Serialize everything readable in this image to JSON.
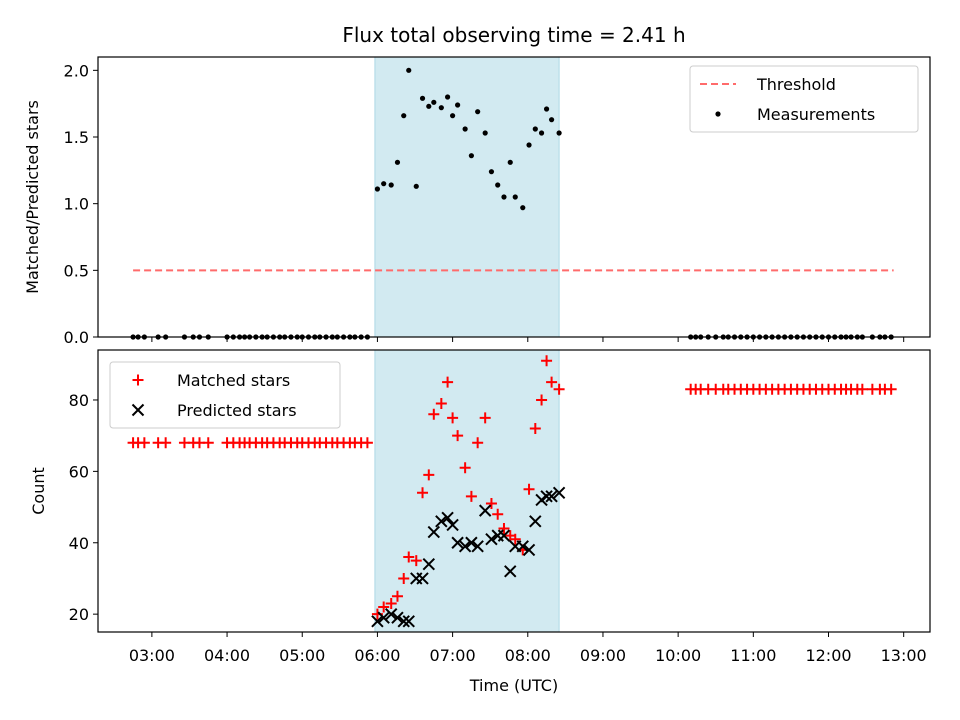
{
  "chart_data": [
    {
      "type": "scatter",
      "title": "Flux total observing time = 2.41 h",
      "xlabel": "",
      "ylabel": "Matched/Predicted stars",
      "xlim": [
        "02:17",
        "13:21"
      ],
      "ylim": [
        0,
        2.1
      ],
      "yticks": [
        "0.0",
        "0.5",
        "1.0",
        "1.5",
        "2.0"
      ],
      "legend_position": "upper right",
      "shaded_region": {
        "start": "05:58",
        "end": "08:25",
        "color": "#add8e6"
      },
      "series": [
        {
          "name": "Threshold",
          "style": "dashed-line",
          "color": "#ff6b6b",
          "points": [
            [
              "02:45",
              0.5
            ],
            [
              "12:52",
              0.5
            ]
          ]
        },
        {
          "name": "Measurements",
          "style": "dot",
          "color": "#000000",
          "points": [
            [
              "02:45",
              0
            ],
            [
              "02:49",
              0
            ],
            [
              "02:54",
              0
            ],
            [
              "03:05",
              0
            ],
            [
              "03:11",
              0
            ],
            [
              "03:26",
              0
            ],
            [
              "03:33",
              0
            ],
            [
              "03:38",
              0
            ],
            [
              "03:45",
              0
            ],
            [
              "04:00",
              0
            ],
            [
              "04:05",
              0
            ],
            [
              "04:10",
              0
            ],
            [
              "04:14",
              0
            ],
            [
              "04:18",
              0
            ],
            [
              "04:23",
              0
            ],
            [
              "04:28",
              0
            ],
            [
              "04:32",
              0
            ],
            [
              "04:37",
              0
            ],
            [
              "04:42",
              0
            ],
            [
              "04:46",
              0
            ],
            [
              "04:51",
              0
            ],
            [
              "04:56",
              0
            ],
            [
              "05:00",
              0
            ],
            [
              "05:05",
              0
            ],
            [
              "05:10",
              0
            ],
            [
              "05:14",
              0
            ],
            [
              "05:19",
              0
            ],
            [
              "05:24",
              0
            ],
            [
              "05:28",
              0
            ],
            [
              "05:33",
              0
            ],
            [
              "05:38",
              0
            ],
            [
              "05:42",
              0
            ],
            [
              "05:47",
              0
            ],
            [
              "05:52",
              0
            ],
            [
              "06:00",
              1.11
            ],
            [
              "06:05",
              1.15
            ],
            [
              "06:11",
              1.14
            ],
            [
              "06:16",
              1.31
            ],
            [
              "06:21",
              1.66
            ],
            [
              "06:25",
              2.0
            ],
            [
              "06:31",
              1.13
            ],
            [
              "06:36",
              1.79
            ],
            [
              "06:41",
              1.73
            ],
            [
              "06:45",
              1.76
            ],
            [
              "06:51",
              1.72
            ],
            [
              "06:56",
              1.8
            ],
            [
              "07:00",
              1.66
            ],
            [
              "07:04",
              1.74
            ],
            [
              "07:10",
              1.56
            ],
            [
              "07:15",
              1.36
            ],
            [
              "07:20",
              1.69
            ],
            [
              "07:26",
              1.53
            ],
            [
              "07:31",
              1.24
            ],
            [
              "07:36",
              1.14
            ],
            [
              "07:41",
              1.05
            ],
            [
              "07:46",
              1.31
            ],
            [
              "07:50",
              1.05
            ],
            [
              "07:56",
              0.97
            ],
            [
              "08:01",
              1.44
            ],
            [
              "08:06",
              1.56
            ],
            [
              "08:11",
              1.53
            ],
            [
              "08:15",
              1.71
            ],
            [
              "08:19",
              1.63
            ],
            [
              "08:25",
              1.53
            ],
            [
              "10:10",
              0
            ],
            [
              "10:14",
              0
            ],
            [
              "10:18",
              0
            ],
            [
              "10:24",
              0
            ],
            [
              "10:30",
              0
            ],
            [
              "10:36",
              0
            ],
            [
              "10:40",
              0
            ],
            [
              "10:45",
              0
            ],
            [
              "10:50",
              0
            ],
            [
              "10:55",
              0
            ],
            [
              "11:00",
              0
            ],
            [
              "11:05",
              0
            ],
            [
              "11:10",
              0
            ],
            [
              "11:15",
              0
            ],
            [
              "11:20",
              0
            ],
            [
              "11:25",
              0
            ],
            [
              "11:30",
              0
            ],
            [
              "11:35",
              0
            ],
            [
              "11:40",
              0
            ],
            [
              "11:45",
              0
            ],
            [
              "11:50",
              0
            ],
            [
              "11:55",
              0
            ],
            [
              "12:00",
              0
            ],
            [
              "12:05",
              0
            ],
            [
              "12:10",
              0
            ],
            [
              "12:14",
              0
            ],
            [
              "12:18",
              0
            ],
            [
              "12:23",
              0
            ],
            [
              "12:27",
              0
            ],
            [
              "12:35",
              0
            ],
            [
              "12:41",
              0
            ],
            [
              "12:45",
              0
            ],
            [
              "12:50",
              0
            ]
          ]
        }
      ]
    },
    {
      "type": "scatter",
      "title": "",
      "xlabel": "Time (UTC)",
      "ylabel": "Count",
      "xlim": [
        "02:17",
        "13:21"
      ],
      "ylim": [
        15,
        94
      ],
      "xticks": [
        "03:00",
        "04:00",
        "05:00",
        "06:00",
        "07:00",
        "08:00",
        "09:00",
        "10:00",
        "11:00",
        "12:00",
        "13:00"
      ],
      "yticks": [
        "20",
        "40",
        "60",
        "80"
      ],
      "legend_position": "upper left",
      "shaded_region": {
        "start": "05:58",
        "end": "08:25",
        "color": "#add8e6"
      },
      "series": [
        {
          "name": "Matched stars",
          "marker": "plus",
          "color": "#ff0000",
          "points": [
            [
              "02:45",
              68
            ],
            [
              "02:49",
              68
            ],
            [
              "02:54",
              68
            ],
            [
              "03:05",
              68
            ],
            [
              "03:11",
              68
            ],
            [
              "03:26",
              68
            ],
            [
              "03:33",
              68
            ],
            [
              "03:38",
              68
            ],
            [
              "03:45",
              68
            ],
            [
              "04:00",
              68
            ],
            [
              "04:05",
              68
            ],
            [
              "04:10",
              68
            ],
            [
              "04:14",
              68
            ],
            [
              "04:18",
              68
            ],
            [
              "04:23",
              68
            ],
            [
              "04:28",
              68
            ],
            [
              "04:32",
              68
            ],
            [
              "04:37",
              68
            ],
            [
              "04:42",
              68
            ],
            [
              "04:46",
              68
            ],
            [
              "04:51",
              68
            ],
            [
              "04:56",
              68
            ],
            [
              "05:00",
              68
            ],
            [
              "05:05",
              68
            ],
            [
              "05:10",
              68
            ],
            [
              "05:14",
              68
            ],
            [
              "05:19",
              68
            ],
            [
              "05:24",
              68
            ],
            [
              "05:28",
              68
            ],
            [
              "05:33",
              68
            ],
            [
              "05:38",
              68
            ],
            [
              "05:42",
              68
            ],
            [
              "05:47",
              68
            ],
            [
              "05:52",
              68
            ],
            [
              "06:00",
              20
            ],
            [
              "06:05",
              22
            ],
            [
              "06:11",
              23
            ],
            [
              "06:16",
              25
            ],
            [
              "06:21",
              30
            ],
            [
              "06:25",
              36
            ],
            [
              "06:31",
              35
            ],
            [
              "06:36",
              54
            ],
            [
              "06:41",
              59
            ],
            [
              "06:45",
              76
            ],
            [
              "06:51",
              79
            ],
            [
              "06:56",
              85
            ],
            [
              "07:00",
              75
            ],
            [
              "07:04",
              70
            ],
            [
              "07:10",
              61
            ],
            [
              "07:15",
              53
            ],
            [
              "07:20",
              68
            ],
            [
              "07:26",
              75
            ],
            [
              "07:31",
              51
            ],
            [
              "07:36",
              48
            ],
            [
              "07:41",
              44
            ],
            [
              "07:46",
              42
            ],
            [
              "07:50",
              41
            ],
            [
              "07:56",
              38
            ],
            [
              "08:01",
              55
            ],
            [
              "08:06",
              72
            ],
            [
              "08:11",
              80
            ],
            [
              "08:15",
              91
            ],
            [
              "08:19",
              85
            ],
            [
              "08:25",
              83
            ],
            [
              "10:10",
              83
            ],
            [
              "10:14",
              83
            ],
            [
              "10:18",
              83
            ],
            [
              "10:24",
              83
            ],
            [
              "10:30",
              83
            ],
            [
              "10:36",
              83
            ],
            [
              "10:40",
              83
            ],
            [
              "10:45",
              83
            ],
            [
              "10:50",
              83
            ],
            [
              "10:55",
              83
            ],
            [
              "11:00",
              83
            ],
            [
              "11:05",
              83
            ],
            [
              "11:10",
              83
            ],
            [
              "11:15",
              83
            ],
            [
              "11:20",
              83
            ],
            [
              "11:25",
              83
            ],
            [
              "11:30",
              83
            ],
            [
              "11:35",
              83
            ],
            [
              "11:40",
              83
            ],
            [
              "11:45",
              83
            ],
            [
              "11:50",
              83
            ],
            [
              "11:55",
              83
            ],
            [
              "12:00",
              83
            ],
            [
              "12:05",
              83
            ],
            [
              "12:10",
              83
            ],
            [
              "12:14",
              83
            ],
            [
              "12:18",
              83
            ],
            [
              "12:23",
              83
            ],
            [
              "12:27",
              83
            ],
            [
              "12:35",
              83
            ],
            [
              "12:41",
              83
            ],
            [
              "12:45",
              83
            ],
            [
              "12:50",
              83
            ]
          ]
        },
        {
          "name": "Predicted stars",
          "marker": "x",
          "color": "#000000",
          "points": [
            [
              "06:00",
              18
            ],
            [
              "06:05",
              19
            ],
            [
              "06:11",
              20
            ],
            [
              "06:16",
              19
            ],
            [
              "06:21",
              18
            ],
            [
              "06:25",
              18
            ],
            [
              "06:31",
              30
            ],
            [
              "06:36",
              30
            ],
            [
              "06:41",
              34
            ],
            [
              "06:45",
              43
            ],
            [
              "06:51",
              46
            ],
            [
              "06:56",
              47
            ],
            [
              "07:00",
              45
            ],
            [
              "07:04",
              40
            ],
            [
              "07:10",
              39
            ],
            [
              "07:15",
              40
            ],
            [
              "07:20",
              39
            ],
            [
              "07:26",
              49
            ],
            [
              "07:31",
              41
            ],
            [
              "07:36",
              42
            ],
            [
              "07:41",
              42
            ],
            [
              "07:46",
              32
            ],
            [
              "07:50",
              39
            ],
            [
              "07:56",
              39
            ],
            [
              "08:01",
              38
            ],
            [
              "08:06",
              46
            ],
            [
              "08:11",
              52
            ],
            [
              "08:15",
              53
            ],
            [
              "08:19",
              53
            ],
            [
              "08:25",
              54
            ]
          ]
        }
      ]
    }
  ]
}
